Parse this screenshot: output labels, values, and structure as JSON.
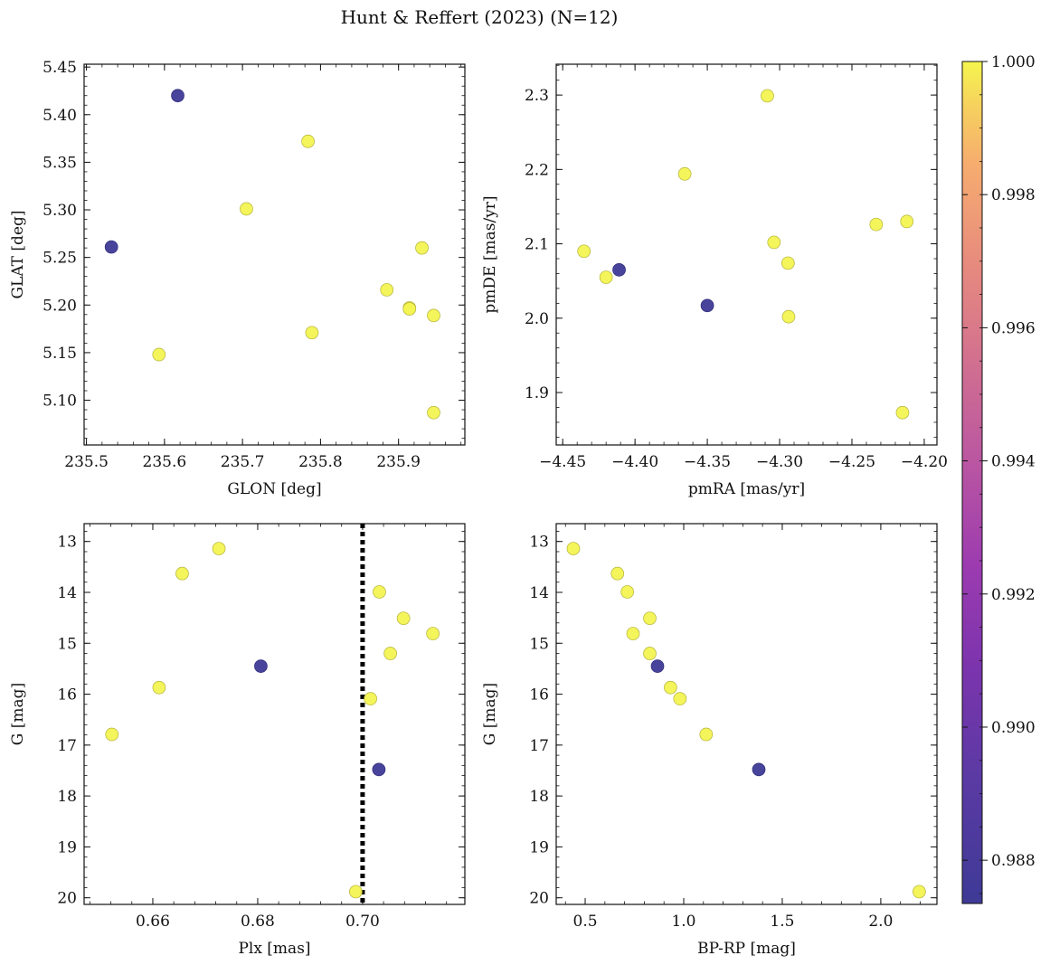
{
  "title": "Hunt & Reffert (2023) (N=12)",
  "chart_data": [
    {
      "type": "scatter",
      "xlabel": "GLON [deg]",
      "ylabel": "GLAT [deg]",
      "xlim": [
        235.497,
        235.985
      ],
      "ylim": [
        5.053,
        5.453
      ],
      "invert_y": false,
      "xticks": [
        235.5,
        235.6,
        235.7,
        235.8,
        235.9
      ],
      "xtick_labels": [
        "235.5",
        "235.6",
        "235.7",
        "235.8",
        "235.9"
      ],
      "yticks": [
        5.1,
        5.15,
        5.2,
        5.25,
        5.3,
        5.35,
        5.4,
        5.45
      ],
      "ytick_labels": [
        "5.10",
        "5.15",
        "5.20",
        "5.25",
        "5.30",
        "5.35",
        "5.40",
        "5.45"
      ],
      "points": [
        {
          "x": 235.617,
          "y": 5.42,
          "c": 0.9873
        },
        {
          "x": 235.532,
          "y": 5.261,
          "c": 0.9873
        },
        {
          "x": 235.784,
          "y": 5.372,
          "c": 1.0
        },
        {
          "x": 235.705,
          "y": 5.301,
          "c": 1.0
        },
        {
          "x": 235.93,
          "y": 5.26,
          "c": 1.0
        },
        {
          "x": 235.885,
          "y": 5.216,
          "c": 1.0
        },
        {
          "x": 235.914,
          "y": 5.197,
          "c": 1.0
        },
        {
          "x": 235.914,
          "y": 5.196,
          "c": 1.0
        },
        {
          "x": 235.945,
          "y": 5.189,
          "c": 1.0
        },
        {
          "x": 235.789,
          "y": 5.171,
          "c": 1.0
        },
        {
          "x": 235.593,
          "y": 5.148,
          "c": 1.0
        },
        {
          "x": 235.945,
          "y": 5.087,
          "c": 1.0
        }
      ]
    },
    {
      "type": "scatter",
      "xlabel": "pmRA [mas/yr]",
      "ylabel": "pmDE [mas/yr]",
      "xlim": [
        -4.4545,
        -4.1912
      ],
      "ylim": [
        1.8295,
        2.3415
      ],
      "invert_y": false,
      "xticks": [
        -4.45,
        -4.4,
        -4.35,
        -4.3,
        -4.25,
        -4.2
      ],
      "xtick_labels": [
        "−4.45",
        "−4.40",
        "−4.35",
        "−4.30",
        "−4.25",
        "−4.20"
      ],
      "yticks": [
        1.9,
        2.0,
        2.1,
        2.2,
        2.3
      ],
      "ytick_labels": [
        "1.9",
        "2.0",
        "2.1",
        "2.2",
        "2.3"
      ],
      "points": [
        {
          "x": -4.3085,
          "y": 2.299,
          "c": 1.0
        },
        {
          "x": -4.3656,
          "y": 2.194,
          "c": 1.0
        },
        {
          "x": -4.212,
          "y": 2.13,
          "c": 1.0
        },
        {
          "x": -4.2332,
          "y": 2.126,
          "c": 1.0
        },
        {
          "x": -4.3039,
          "y": 2.102,
          "c": 1.0
        },
        {
          "x": -4.4353,
          "y": 2.09,
          "c": 1.0
        },
        {
          "x": -4.2942,
          "y": 2.074,
          "c": 1.0
        },
        {
          "x": -4.42,
          "y": 2.055,
          "c": 1.0
        },
        {
          "x": -4.2938,
          "y": 2.002,
          "c": 1.0
        },
        {
          "x": -4.215,
          "y": 1.873,
          "c": 1.0
        },
        {
          "x": -4.411,
          "y": 2.065,
          "c": 0.9873
        },
        {
          "x": -4.35,
          "y": 2.017,
          "c": 0.9873
        }
      ]
    },
    {
      "type": "scatter",
      "xlabel": "Plx [mas]",
      "ylabel": "G [mag]",
      "xlim": [
        0.6469,
        0.7195
      ],
      "ylim": [
        12.65,
        20.13
      ],
      "invert_y": true,
      "xticks": [
        0.66,
        0.68,
        0.7
      ],
      "xtick_labels": [
        "0.66",
        "0.68",
        "0.70"
      ],
      "yticks": [
        13,
        14,
        15,
        16,
        17,
        18,
        19,
        20
      ],
      "ytick_labels": [
        "13",
        "14",
        "15",
        "16",
        "17",
        "18",
        "19",
        "20"
      ],
      "vline": {
        "x": 0.7,
        "style": "dotted"
      },
      "points": [
        {
          "x": 0.6726,
          "y": 13.14,
          "c": 1.0
        },
        {
          "x": 0.6656,
          "y": 13.63,
          "c": 1.0
        },
        {
          "x": 0.7032,
          "y": 13.99,
          "c": 1.0
        },
        {
          "x": 0.7078,
          "y": 14.51,
          "c": 1.0
        },
        {
          "x": 0.7134,
          "y": 14.81,
          "c": 1.0
        },
        {
          "x": 0.7053,
          "y": 15.2,
          "c": 1.0
        },
        {
          "x": 0.6612,
          "y": 15.87,
          "c": 1.0
        },
        {
          "x": 0.7015,
          "y": 16.09,
          "c": 1.0
        },
        {
          "x": 0.6522,
          "y": 16.79,
          "c": 1.0
        },
        {
          "x": 0.6987,
          "y": 19.88,
          "c": 1.0
        },
        {
          "x": 0.6806,
          "y": 15.45,
          "c": 0.9873
        },
        {
          "x": 0.7031,
          "y": 17.48,
          "c": 0.9873
        }
      ]
    },
    {
      "type": "scatter",
      "xlabel": "BP-RP [mag]",
      "ylabel": "G [mag]",
      "xlim": [
        0.353,
        2.285
      ],
      "ylim": [
        12.65,
        20.13
      ],
      "invert_y": true,
      "xticks": [
        0.5,
        1.0,
        1.5,
        2.0
      ],
      "xtick_labels": [
        "0.5",
        "1.0",
        "1.5",
        "2.0"
      ],
      "yticks": [
        13,
        14,
        15,
        16,
        17,
        18,
        19,
        20
      ],
      "ytick_labels": [
        "13",
        "14",
        "15",
        "16",
        "17",
        "18",
        "19",
        "20"
      ],
      "points": [
        {
          "x": 0.44,
          "y": 13.14,
          "c": 1.0
        },
        {
          "x": 0.664,
          "y": 13.63,
          "c": 1.0
        },
        {
          "x": 0.714,
          "y": 13.99,
          "c": 1.0
        },
        {
          "x": 0.828,
          "y": 14.51,
          "c": 1.0
        },
        {
          "x": 0.743,
          "y": 14.81,
          "c": 1.0
        },
        {
          "x": 0.828,
          "y": 15.2,
          "c": 1.0
        },
        {
          "x": 0.933,
          "y": 15.87,
          "c": 1.0
        },
        {
          "x": 0.981,
          "y": 16.09,
          "c": 1.0
        },
        {
          "x": 1.114,
          "y": 16.79,
          "c": 1.0
        },
        {
          "x": 2.195,
          "y": 19.88,
          "c": 1.0
        },
        {
          "x": 0.867,
          "y": 15.45,
          "c": 0.9873
        },
        {
          "x": 1.381,
          "y": 17.48,
          "c": 0.9873
        }
      ]
    }
  ],
  "colorbar": {
    "colormap": "plasma",
    "range": [
      0.98735,
      1.0
    ],
    "ticks": [
      0.988,
      0.99,
      0.992,
      0.994,
      0.996,
      0.998,
      1.0
    ],
    "tick_labels": [
      "0.988",
      "0.990",
      "0.992",
      "0.994",
      "0.996",
      "0.998",
      "1.000"
    ]
  }
}
